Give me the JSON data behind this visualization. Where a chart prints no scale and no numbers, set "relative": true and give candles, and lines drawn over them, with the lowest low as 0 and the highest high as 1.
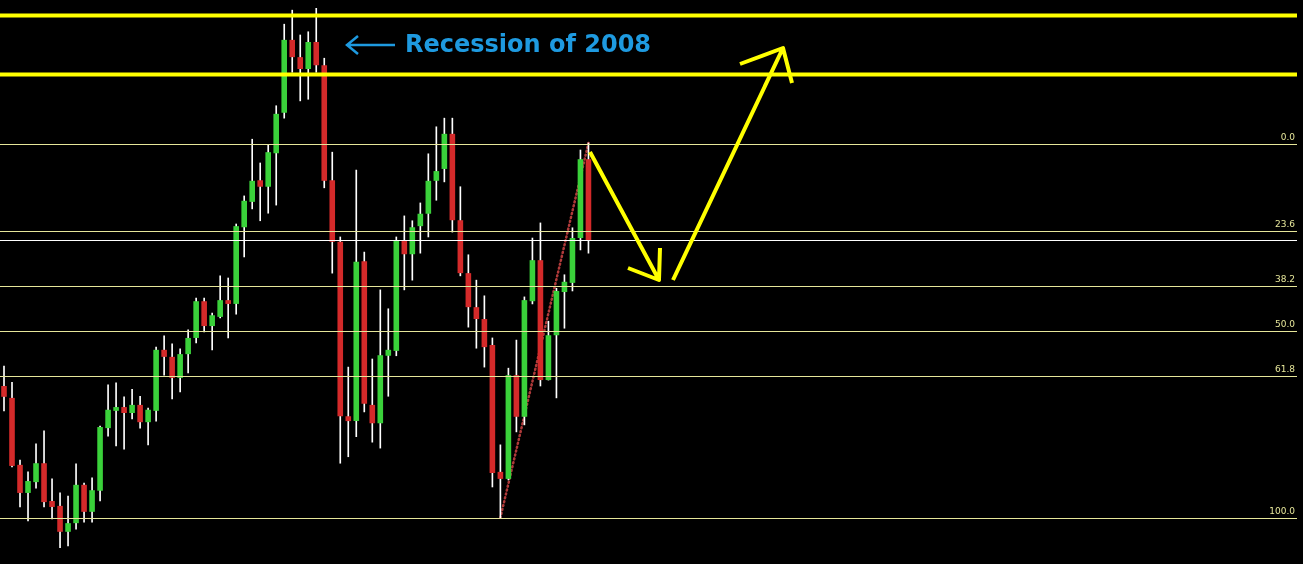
{
  "chart_data": {
    "type": "candlestick",
    "relative": true,
    "grid": false,
    "legend": false,
    "categories": [
      null,
      null,
      null,
      null,
      null,
      null,
      null,
      null,
      null,
      null,
      null,
      null,
      null,
      null,
      null,
      null,
      null,
      null,
      null,
      null,
      null,
      null,
      null,
      null,
      null,
      null,
      null,
      null,
      null,
      null,
      null,
      null,
      null,
      null,
      null,
      null,
      null,
      null,
      null,
      null,
      null,
      null,
      null,
      null,
      null,
      null,
      null,
      null,
      null,
      null,
      null,
      null,
      null,
      null,
      null,
      null,
      null,
      null,
      null,
      null,
      null,
      null,
      null,
      null,
      null,
      null,
      null,
      null,
      null,
      null,
      null,
      null,
      null,
      null,
      null,
      null,
      null,
      null,
      null,
      null,
      null,
      null,
      null,
      null,
      null,
      null,
      null,
      null,
      null,
      null,
      null,
      null,
      null,
      null,
      null,
      null,
      null,
      null,
      null,
      null,
      null,
      null,
      null,
      null,
      null,
      null,
      null,
      null,
      null,
      null,
      null,
      null,
      null,
      null,
      null,
      null,
      null,
      null,
      null,
      null,
      null,
      null,
      null,
      null,
      null,
      null,
      null,
      null,
      null,
      null,
      null,
      null,
      null,
      null,
      null,
      null,
      null,
      null,
      null,
      null,
      null,
      null,
      null,
      null,
      null,
      null,
      null,
      null,
      null,
      null,
      null,
      null,
      null,
      null,
      null,
      null,
      null,
      null,
      null,
      null,
      null,
      null
    ],
    "ohlc": [
      [
        0.3,
        0.337,
        0.254,
        0.28
      ],
      [
        0.278,
        0.307,
        0.15,
        0.152
      ],
      [
        0.154,
        0.163,
        0.076,
        0.102
      ],
      [
        0.102,
        0.141,
        0.05,
        0.124
      ],
      [
        0.122,
        0.193,
        0.111,
        0.157
      ],
      [
        0.157,
        0.217,
        0.076,
        0.085
      ],
      [
        0.087,
        0.128,
        0.054,
        0.076
      ],
      [
        0.078,
        0.102,
        0,
        0.03
      ],
      [
        0.03,
        0.096,
        0.004,
        0.046
      ],
      [
        0.046,
        0.156,
        0.035,
        0.117
      ],
      [
        0.117,
        0.12,
        0.048,
        0.067
      ],
      [
        0.067,
        0.13,
        0.048,
        0.107
      ],
      [
        0.106,
        0.226,
        0.087,
        0.224
      ],
      [
        0.222,
        0.302,
        0.207,
        0.256
      ],
      [
        0.254,
        0.306,
        0.189,
        0.261
      ],
      [
        0.261,
        0.28,
        0.183,
        0.25
      ],
      [
        0.25,
        0.294,
        0.239,
        0.265
      ],
      [
        0.265,
        0.281,
        0.222,
        0.233
      ],
      [
        0.233,
        0.259,
        0.191,
        0.256
      ],
      [
        0.254,
        0.372,
        0.235,
        0.367
      ],
      [
        0.367,
        0.393,
        0.32,
        0.354
      ],
      [
        0.354,
        0.378,
        0.276,
        0.315
      ],
      [
        0.315,
        0.369,
        0.289,
        0.359
      ],
      [
        0.359,
        0.404,
        0.324,
        0.389
      ],
      [
        0.389,
        0.463,
        0.38,
        0.457
      ],
      [
        0.457,
        0.463,
        0.4,
        0.411
      ],
      [
        0.411,
        0.435,
        0.367,
        0.431
      ],
      [
        0.428,
        0.504,
        0.426,
        0.459
      ],
      [
        0.459,
        0.5,
        0.389,
        0.452
      ],
      [
        0.452,
        0.6,
        0.433,
        0.596
      ],
      [
        0.594,
        0.652,
        0.539,
        0.643
      ],
      [
        0.641,
        0.757,
        0.628,
        0.68
      ],
      [
        0.681,
        0.713,
        0.606,
        0.669
      ],
      [
        0.669,
        0.746,
        0.62,
        0.733
      ],
      [
        0.731,
        0.819,
        0.635,
        0.804
      ],
      [
        0.806,
        0.97,
        0.796,
        0.941
      ],
      [
        0.941,
        0.996,
        0.881,
        0.909
      ],
      [
        0.909,
        0.95,
        0.828,
        0.887
      ],
      [
        0.887,
        0.956,
        0.831,
        0.937
      ],
      [
        0.937,
        1,
        0.881,
        0.894
      ],
      [
        0.894,
        0.907,
        0.667,
        0.68
      ],
      [
        0.681,
        0.733,
        0.509,
        0.567
      ],
      [
        0.567,
        0.576,
        0.157,
        0.244
      ],
      [
        0.244,
        0.335,
        0.169,
        0.235
      ],
      [
        0.235,
        0.7,
        0.206,
        0.53
      ],
      [
        0.531,
        0.548,
        0.252,
        0.267
      ],
      [
        0.265,
        0.35,
        0.196,
        0.231
      ],
      [
        0.231,
        0.478,
        0.185,
        0.357
      ],
      [
        0.356,
        0.443,
        0.281,
        0.367
      ],
      [
        0.365,
        0.576,
        0.356,
        0.57
      ],
      [
        0.57,
        0.615,
        0.478,
        0.544
      ],
      [
        0.544,
        0.606,
        0.496,
        0.594
      ],
      [
        0.596,
        0.639,
        0.546,
        0.619
      ],
      [
        0.619,
        0.73,
        0.576,
        0.68
      ],
      [
        0.68,
        0.78,
        0.644,
        0.698
      ],
      [
        0.702,
        0.796,
        0.678,
        0.767
      ],
      [
        0.767,
        0.796,
        0.585,
        0.607
      ],
      [
        0.607,
        0.669,
        0.504,
        0.509
      ],
      [
        0.509,
        0.543,
        0.409,
        0.446
      ],
      [
        0.446,
        0.496,
        0.37,
        0.424
      ],
      [
        0.424,
        0.467,
        0.335,
        0.372
      ],
      [
        0.376,
        0.389,
        0.113,
        0.139
      ],
      [
        0.141,
        0.191,
        0.056,
        0.128
      ],
      [
        0.128,
        0.333,
        0.126,
        0.32
      ],
      [
        0.32,
        0.385,
        0.215,
        0.243
      ],
      [
        0.243,
        0.465,
        0.228,
        0.459
      ],
      [
        0.457,
        0.574,
        0.452,
        0.533
      ],
      [
        0.533,
        0.602,
        0.3,
        0.311
      ],
      [
        0.311,
        0.42,
        0.311,
        0.394
      ],
      [
        0.394,
        0.481,
        0.278,
        0.476
      ],
      [
        0.474,
        0.506,
        0.407,
        0.493
      ],
      [
        0.491,
        0.593,
        0.476,
        0.574
      ],
      [
        0.574,
        0.737,
        0.552,
        0.72
      ],
      [
        0.72,
        0.75,
        0.546,
        0.569
      ],
      null,
      null,
      null,
      null,
      null,
      null,
      null,
      null,
      null,
      null,
      null,
      null,
      null,
      null,
      null,
      null,
      null,
      null,
      null,
      null,
      null,
      null,
      null,
      null,
      null,
      null,
      null,
      null,
      null,
      null,
      null,
      null,
      null,
      null,
      null,
      null,
      null,
      null,
      null,
      null,
      null,
      null,
      null,
      null,
      null,
      null,
      null,
      null,
      null,
      null,
      null,
      null,
      null,
      null,
      null,
      null,
      null,
      null,
      null,
      null,
      null,
      null,
      null,
      null,
      null,
      null,
      null,
      null,
      null,
      null,
      null,
      null,
      null,
      null,
      null,
      null,
      null,
      null,
      null,
      null,
      null,
      null,
      null,
      null,
      null,
      null,
      null,
      null
    ],
    "colors": [
      "#d42a2a",
      "#d42a2a",
      "#d42a2a",
      "#3ad13a",
      "#3ad13a",
      "#d42a2a",
      "#d42a2a",
      "#d42a2a",
      "#3ad13a",
      "#3ad13a",
      "#d42a2a",
      "#3ad13a",
      "#3ad13a",
      "#3ad13a",
      "#3ad13a",
      "#d42a2a",
      "#3ad13a",
      "#d42a2a",
      "#3ad13a",
      "#3ad13a",
      "#d42a2a",
      "#d42a2a",
      "#3ad13a",
      "#3ad13a",
      "#3ad13a",
      "#d42a2a",
      "#3ad13a",
      "#3ad13a",
      "#d42a2a",
      "#3ad13a",
      "#3ad13a",
      "#3ad13a",
      "#d42a2a",
      "#3ad13a",
      "#3ad13a",
      "#3ad13a",
      "#d42a2a",
      "#d42a2a",
      "#3ad13a",
      "#d42a2a",
      "#d42a2a",
      "#d42a2a",
      "#d42a2a",
      "#d42a2a",
      "#3ad13a",
      "#d42a2a",
      "#d42a2a",
      "#3ad13a",
      "#3ad13a",
      "#3ad13a",
      "#d42a2a",
      "#3ad13a",
      "#3ad13a",
      "#3ad13a",
      "#3ad13a",
      "#3ad13a",
      "#d42a2a",
      "#d42a2a",
      "#d42a2a",
      "#d42a2a",
      "#d42a2a",
      "#d42a2a",
      "#d42a2a",
      "#3ad13a",
      "#d42a2a",
      "#3ad13a",
      "#3ad13a",
      "#d42a2a",
      "#3ad13a",
      "#3ad13a",
      "#3ad13a",
      "#3ad13a",
      "#3ad13a",
      "#d42a2a",
      null,
      null,
      null,
      null,
      null,
      null,
      null,
      null,
      null,
      null,
      null,
      null,
      null,
      null,
      null,
      null,
      null,
      null,
      null,
      null,
      null,
      null,
      null,
      null,
      null,
      null,
      null,
      null,
      null,
      null,
      null,
      null,
      null,
      null,
      null,
      null,
      null,
      null,
      null,
      null,
      null,
      null,
      null,
      null,
      null,
      null,
      null,
      null,
      null,
      null,
      null,
      null,
      null,
      null,
      null,
      null,
      null,
      null,
      null,
      null,
      null,
      null,
      null,
      null,
      null,
      null,
      null,
      null,
      null,
      null,
      null,
      null,
      null,
      null,
      null,
      null,
      null,
      null,
      null,
      null,
      null,
      null,
      null,
      null,
      null,
      null,
      null,
      null
    ],
    "series": [
      {
        "type": "line",
        "color": "#b03a3a",
        "line_style": "dotted",
        "marker": "none",
        "values": [
          null,
          null,
          null,
          null,
          null,
          null,
          null,
          null,
          null,
          null,
          null,
          null,
          null,
          null,
          null,
          null,
          null,
          null,
          null,
          null,
          null,
          null,
          null,
          null,
          null,
          null,
          null,
          null,
          null,
          null,
          null,
          null,
          null,
          null,
          null,
          null,
          null,
          null,
          null,
          null,
          null,
          null,
          null,
          null,
          null,
          null,
          null,
          null,
          null,
          null,
          null,
          null,
          null,
          null,
          null,
          null,
          null,
          null,
          null,
          null,
          null,
          null,
          0.056,
          null,
          null,
          null,
          null,
          null,
          null,
          null,
          null,
          null,
          null,
          0.75,
          null,
          null,
          null,
          null,
          null,
          null,
          null,
          null,
          null,
          null,
          null,
          null,
          null,
          null,
          null,
          null,
          null,
          null,
          null,
          null,
          null,
          null,
          null,
          null,
          null,
          null,
          null,
          null,
          null,
          null,
          null,
          null,
          null,
          null,
          null,
          null,
          null,
          null,
          null,
          null,
          null,
          null,
          null,
          null,
          null,
          null,
          null,
          null,
          null,
          null,
          null,
          null,
          null,
          null,
          null,
          null,
          null,
          null,
          null,
          null,
          null,
          null,
          null,
          null,
          null,
          null,
          null,
          null,
          null,
          null,
          null,
          null,
          null,
          null,
          null,
          null,
          null,
          null,
          null,
          null,
          null,
          null,
          null,
          null,
          null,
          null,
          null,
          null
        ]
      }
    ],
    "ref_lines": [
      {
        "axis": "y",
        "value": 0.987,
        "color": "#ffff00"
      },
      {
        "axis": "y",
        "value": 0.878,
        "color": "#ffff00"
      },
      {
        "axis": "y",
        "value": 0.57,
        "color": "#ffffff"
      },
      {
        "axis": "y",
        "value": 0.748,
        "color": "#e6e69a"
      },
      {
        "axis": "y",
        "value": 0.587,
        "color": "#e6e69a"
      },
      {
        "axis": "y",
        "value": 0.485,
        "color": "#e6e69a"
      },
      {
        "axis": "y",
        "value": 0.402,
        "color": "#e6e69a"
      },
      {
        "axis": "y",
        "value": 0.319,
        "color": "#e6e69a"
      },
      {
        "axis": "y",
        "value": 0.056,
        "color": "#e6e69a"
      }
    ],
    "annotations": [
      "Recession of 2008",
      {
        "text": "0.0",
        "y": 0.748
      },
      {
        "text": "23.6",
        "y": 0.587
      },
      {
        "text": "38.2",
        "y": 0.485
      },
      {
        "text": "50.0",
        "y": 0.402
      },
      {
        "text": "61.8",
        "y": 0.319
      },
      {
        "text": "100.0",
        "y": 0.056
      }
    ]
  }
}
